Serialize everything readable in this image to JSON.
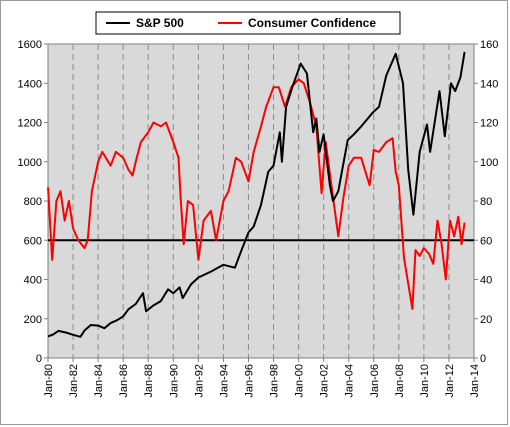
{
  "chart_data": {
    "type": "line",
    "title": "",
    "xlabel": "",
    "ylabel": "",
    "x_range": [
      "Jan-80",
      "Jan-14"
    ],
    "x_tick_labels": [
      "Jan-80",
      "Jan-82",
      "Jan-84",
      "Jan-86",
      "Jan-88",
      "Jan-90",
      "Jan-92",
      "Jan-94",
      "Jan-96",
      "Jan-98",
      "Jan-00",
      "Jan-02",
      "Jan-04",
      "Jan-06",
      "Jan-08",
      "Jan-10",
      "Jan-12",
      "Jan-14"
    ],
    "y_left": {
      "min": 0,
      "max": 1600,
      "ticks": [
        0,
        200,
        400,
        600,
        800,
        1000,
        1200,
        1400,
        1600
      ]
    },
    "y_right": {
      "min": 0,
      "max": 160,
      "ticks": [
        0,
        20,
        40,
        60,
        80,
        100,
        120,
        140,
        160
      ]
    },
    "grid": "vertical dashed",
    "plot_background": "#d9d9d9",
    "legend_position": "top",
    "reference_line": {
      "axis": "right",
      "value": 60,
      "color": "#000000"
    },
    "series": [
      {
        "name": "S&P 500",
        "axis": "left",
        "color": "#000000",
        "points": [
          [
            "1980-01",
            110
          ],
          [
            "1980-06",
            120
          ],
          [
            "1980-11",
            138
          ],
          [
            "1981-06",
            130
          ],
          [
            "1982-01",
            118
          ],
          [
            "1982-08",
            108
          ],
          [
            "1982-12",
            140
          ],
          [
            "1983-06",
            168
          ],
          [
            "1984-01",
            165
          ],
          [
            "1984-07",
            152
          ],
          [
            "1985-01",
            178
          ],
          [
            "1985-07",
            192
          ],
          [
            "1986-01",
            212
          ],
          [
            "1986-06",
            248
          ],
          [
            "1987-01",
            275
          ],
          [
            "1987-08",
            330
          ],
          [
            "1987-11",
            238
          ],
          [
            "1988-06",
            268
          ],
          [
            "1989-01",
            290
          ],
          [
            "1989-08",
            350
          ],
          [
            "1990-01",
            330
          ],
          [
            "1990-07",
            360
          ],
          [
            "1990-10",
            305
          ],
          [
            "1991-06",
            375
          ],
          [
            "1992-01",
            410
          ],
          [
            "1993-01",
            440
          ],
          [
            "1994-01",
            475
          ],
          [
            "1994-12",
            460
          ],
          [
            "1995-06",
            545
          ],
          [
            "1996-01",
            640
          ],
          [
            "1996-06",
            670
          ],
          [
            "1997-01",
            780
          ],
          [
            "1997-08",
            950
          ],
          [
            "1998-01",
            980
          ],
          [
            "1998-07",
            1150
          ],
          [
            "1998-09",
            1000
          ],
          [
            "1999-01",
            1280
          ],
          [
            "1999-07",
            1380
          ],
          [
            "2000-03",
            1500
          ],
          [
            "2000-09",
            1450
          ],
          [
            "2001-03",
            1150
          ],
          [
            "2001-06",
            1220
          ],
          [
            "2001-09",
            1050
          ],
          [
            "2002-01",
            1140
          ],
          [
            "2002-07",
            880
          ],
          [
            "2002-10",
            800
          ],
          [
            "2003-03",
            850
          ],
          [
            "2003-12",
            1110
          ],
          [
            "2004-06",
            1140
          ],
          [
            "2005-01",
            1180
          ],
          [
            "2005-12",
            1250
          ],
          [
            "2006-06",
            1280
          ],
          [
            "2007-01",
            1440
          ],
          [
            "2007-10",
            1550
          ],
          [
            "2008-05",
            1400
          ],
          [
            "2008-10",
            960
          ],
          [
            "2009-03",
            730
          ],
          [
            "2009-09",
            1050
          ],
          [
            "2010-04",
            1190
          ],
          [
            "2010-07",
            1050
          ],
          [
            "2011-04",
            1360
          ],
          [
            "2011-09",
            1130
          ],
          [
            "2012-03",
            1400
          ],
          [
            "2012-07",
            1360
          ],
          [
            "2012-12",
            1430
          ],
          [
            "2013-04",
            1560
          ]
        ]
      },
      {
        "name": "Consumer Confidence",
        "axis": "right",
        "color": "#ff0000",
        "points": [
          [
            "1980-01",
            87
          ],
          [
            "1980-05",
            50
          ],
          [
            "1980-09",
            80
          ],
          [
            "1981-01",
            85
          ],
          [
            "1981-05",
            70
          ],
          [
            "1981-09",
            80
          ],
          [
            "1982-01",
            66
          ],
          [
            "1982-06",
            60
          ],
          [
            "1982-12",
            56
          ],
          [
            "1983-03",
            60
          ],
          [
            "1983-07",
            85
          ],
          [
            "1984-01",
            100
          ],
          [
            "1984-05",
            105
          ],
          [
            "1985-01",
            98
          ],
          [
            "1985-06",
            105
          ],
          [
            "1986-01",
            102
          ],
          [
            "1986-06",
            96
          ],
          [
            "1986-10",
            93
          ],
          [
            "1987-01",
            100
          ],
          [
            "1987-06",
            110
          ],
          [
            "1988-01",
            115
          ],
          [
            "1988-06",
            120
          ],
          [
            "1989-01",
            118
          ],
          [
            "1989-06",
            120
          ],
          [
            "1990-01",
            110
          ],
          [
            "1990-06",
            102
          ],
          [
            "1990-08",
            82
          ],
          [
            "1990-11",
            58
          ],
          [
            "1991-03",
            80
          ],
          [
            "1991-08",
            78
          ],
          [
            "1992-01",
            50
          ],
          [
            "1992-06",
            70
          ],
          [
            "1993-01",
            75
          ],
          [
            "1993-06",
            60
          ],
          [
            "1994-01",
            80
          ],
          [
            "1994-06",
            85
          ],
          [
            "1995-01",
            102
          ],
          [
            "1995-06",
            100
          ],
          [
            "1996-01",
            90
          ],
          [
            "1996-06",
            105
          ],
          [
            "1997-01",
            118
          ],
          [
            "1997-06",
            128
          ],
          [
            "1998-01",
            138
          ],
          [
            "1998-06",
            138
          ],
          [
            "1998-12",
            128
          ],
          [
            "1999-06",
            138
          ],
          [
            "2000-01",
            142
          ],
          [
            "2000-06",
            140
          ],
          [
            "2000-12",
            130
          ],
          [
            "2001-06",
            118
          ],
          [
            "2001-11",
            84
          ],
          [
            "2002-03",
            110
          ],
          [
            "2002-10",
            82
          ],
          [
            "2003-03",
            62
          ],
          [
            "2003-08",
            82
          ],
          [
            "2004-01",
            98
          ],
          [
            "2004-06",
            102
          ],
          [
            "2005-01",
            102
          ],
          [
            "2005-09",
            88
          ],
          [
            "2006-01",
            106
          ],
          [
            "2006-06",
            105
          ],
          [
            "2007-01",
            110
          ],
          [
            "2007-07",
            112
          ],
          [
            "2007-10",
            95
          ],
          [
            "2008-01",
            88
          ],
          [
            "2008-06",
            51
          ],
          [
            "2008-10",
            38
          ],
          [
            "2009-02",
            25
          ],
          [
            "2009-05",
            55
          ],
          [
            "2009-09",
            52
          ],
          [
            "2010-01",
            56
          ],
          [
            "2010-06",
            53
          ],
          [
            "2010-10",
            48
          ],
          [
            "2011-02",
            70
          ],
          [
            "2011-06",
            58
          ],
          [
            "2011-10",
            40
          ],
          [
            "2012-02",
            70
          ],
          [
            "2012-06",
            62
          ],
          [
            "2012-10",
            72
          ],
          [
            "2013-01",
            58
          ],
          [
            "2013-04",
            69
          ]
        ]
      }
    ]
  }
}
